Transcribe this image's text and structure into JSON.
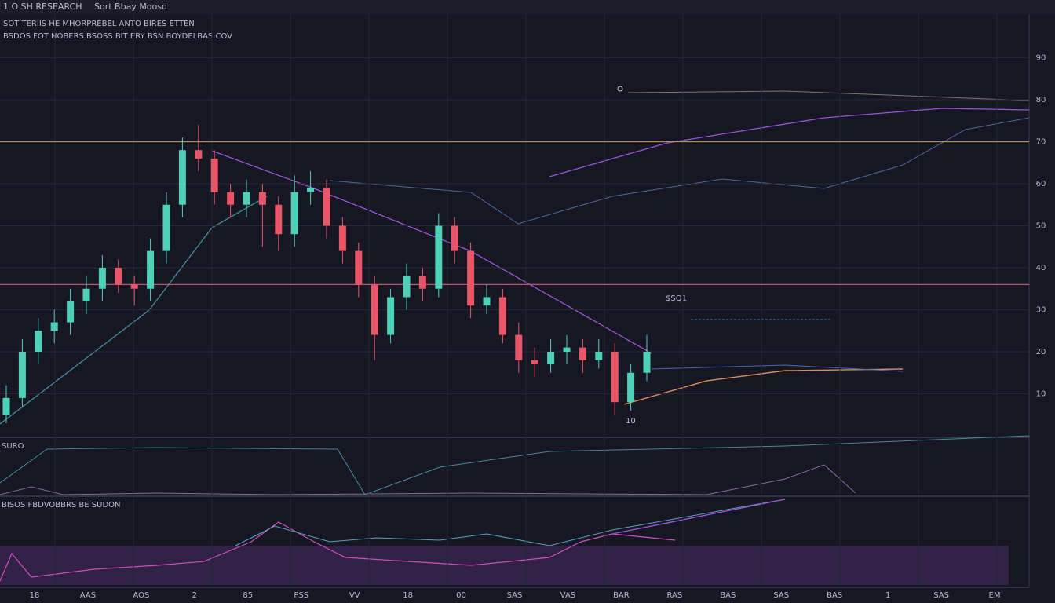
{
  "header": {
    "brand": "1 O SH RESEARCH",
    "symbol": "Sort Bbay Moosd",
    "line1": "SOT TERIIS HE MHORPREBEL ANTO BIRES ETTEN",
    "line2": "BSDOS FOT NOBERS BSOSS BIT ERY BSN BOYDELBAS.COV"
  },
  "panels": {
    "volume_label": "SURO",
    "oscillator_label": "BISOS FBDVOBBRS BE SUDON"
  },
  "annotations": {
    "marker": "$SQ1",
    "low_marker": "10"
  },
  "x_axis_labels": [
    "18",
    "AAS",
    "AOS",
    "2",
    "85",
    "PSS",
    "VV",
    "18",
    "00",
    "SAS",
    "VAS",
    "BAR",
    "RAS",
    "BAS",
    "SAS",
    "BAS",
    "1",
    "SAS",
    "EM"
  ],
  "chart_data": {
    "type": "candlestick",
    "open": [
      5,
      9,
      20,
      25,
      27,
      32,
      35,
      40,
      36,
      35,
      44,
      55,
      68,
      66,
      58,
      55,
      58,
      55,
      48,
      58,
      59,
      50,
      44,
      36,
      24,
      33,
      38,
      35,
      50,
      44,
      31,
      33,
      24,
      18,
      17,
      20,
      21,
      18,
      20,
      8,
      15
    ],
    "high": [
      12,
      23,
      28,
      30,
      35,
      38,
      43,
      42,
      38,
      47,
      58,
      71,
      74,
      68,
      60,
      61,
      60,
      57,
      62,
      63,
      61,
      52,
      46,
      38,
      35,
      41,
      40,
      53,
      52,
      46,
      36,
      35,
      27,
      21,
      23,
      24,
      23,
      23,
      22,
      17,
      24
    ],
    "low": [
      3,
      7,
      17,
      22,
      24,
      29,
      32,
      34,
      31,
      32,
      41,
      52,
      63,
      55,
      52,
      52,
      45,
      44,
      45,
      55,
      47,
      41,
      33,
      18,
      22,
      30,
      32,
      33,
      41,
      28,
      29,
      22,
      15,
      14,
      15,
      17,
      15,
      16,
      5,
      6,
      13
    ],
    "close": [
      9,
      20,
      25,
      27,
      32,
      35,
      40,
      36,
      35,
      44,
      55,
      68,
      66,
      58,
      55,
      58,
      55,
      48,
      58,
      59,
      50,
      44,
      36,
      24,
      33,
      38,
      35,
      50,
      44,
      31,
      33,
      24,
      18,
      17,
      20,
      21,
      18,
      20,
      8,
      15,
      20
    ],
    "up_color": "#4fd1b8",
    "down_color": "#e8566a",
    "levels": [
      {
        "value": 70,
        "color": "#b8945a"
      },
      {
        "value": 36,
        "color": "#c25468"
      }
    ],
    "ylim": [
      0,
      100
    ],
    "yticks": [
      10,
      20,
      30,
      40,
      50,
      60,
      70,
      80,
      90
    ],
    "grid": true
  }
}
